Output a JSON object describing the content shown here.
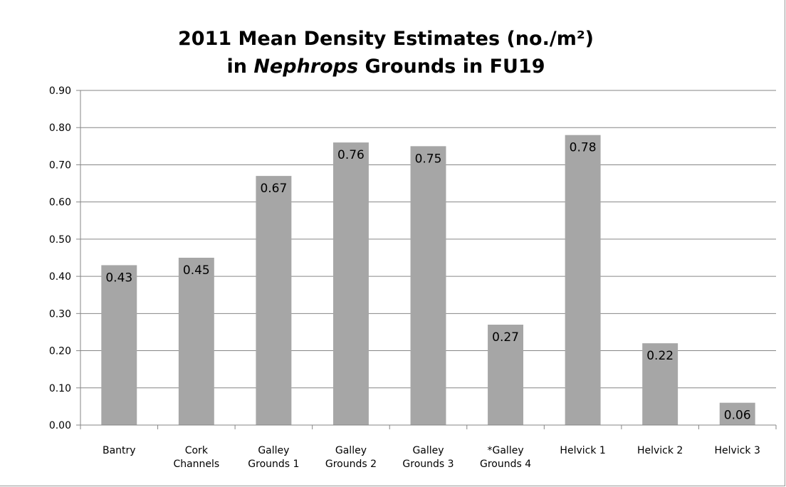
{
  "chart_data": {
    "type": "bar",
    "title_parts": [
      {
        "text": "2011 Mean Density Estimates (no./m²)",
        "italic": false,
        "line": 1
      },
      {
        "text": "in ",
        "italic": false,
        "line": 2
      },
      {
        "text": "Nephrops",
        "italic": true,
        "line": 2
      },
      {
        "text": " Grounds in FU19",
        "italic": false,
        "line": 2
      }
    ],
    "categories": [
      [
        "Bantry"
      ],
      [
        "Cork",
        "Channels"
      ],
      [
        "Galley",
        "Grounds 1"
      ],
      [
        "Galley",
        "Grounds 2"
      ],
      [
        "Galley",
        "Grounds 3"
      ],
      [
        "*Galley",
        "Grounds 4"
      ],
      [
        "Helvick 1"
      ],
      [
        "Helvick 2"
      ],
      [
        "Helvick 3"
      ]
    ],
    "values": [
      0.43,
      0.45,
      0.67,
      0.76,
      0.75,
      0.27,
      0.78,
      0.22,
      0.06
    ],
    "data_labels": [
      "0.43",
      "0.45",
      "0.67",
      "0.76",
      "0.75",
      "0.27",
      "0.78",
      "0.22",
      "0.06"
    ],
    "y_ticks": [
      "0.00",
      "0.10",
      "0.20",
      "0.30",
      "0.40",
      "0.50",
      "0.60",
      "0.70",
      "0.80",
      "0.90"
    ],
    "ylim": [
      0,
      0.9
    ],
    "ystep": 0.1,
    "grid": true,
    "legend": "none",
    "bar_color": "#a6a6a6",
    "grid_color": "#868686",
    "axis_color": "#868686"
  }
}
